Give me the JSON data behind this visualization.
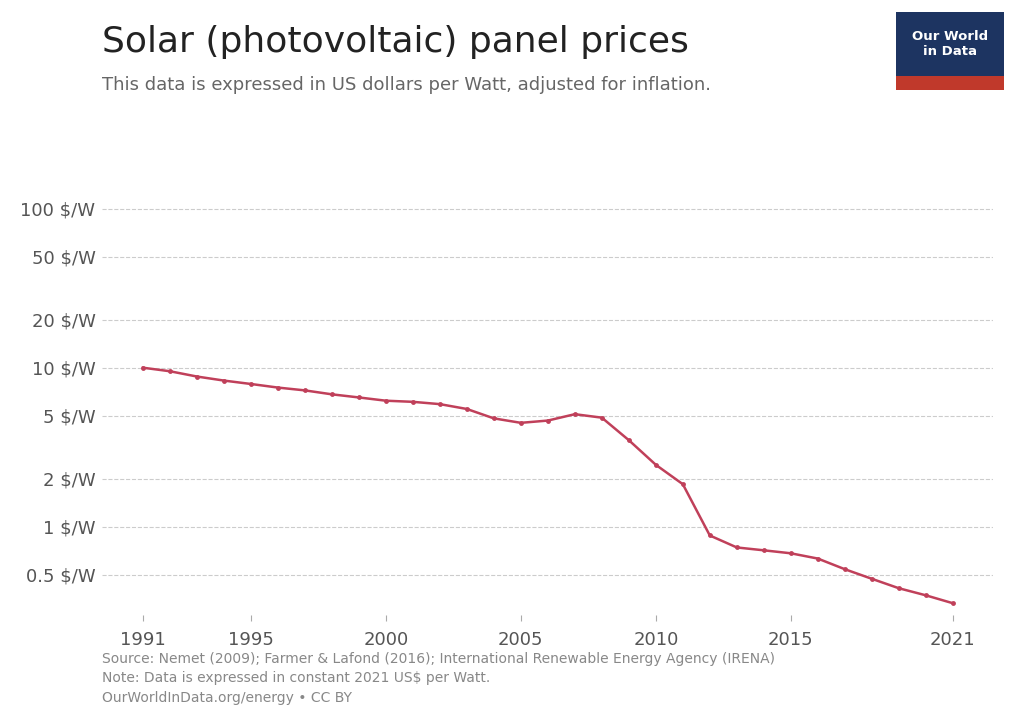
{
  "title": "Solar (photovoltaic) panel prices",
  "subtitle": "This data is expressed in US dollars per Watt, adjusted for inflation.",
  "source_text": "Source: Nemet (2009); Farmer & Lafond (2016); International Renewable Energy Agency (IRENA)\nNote: Data is expressed in constant 2021 US$ per Watt.\nOurWorldInData.org/energy • CC BY",
  "years": [
    1991,
    1992,
    1993,
    1994,
    1995,
    1996,
    1997,
    1998,
    1999,
    2000,
    2001,
    2002,
    2003,
    2004,
    2005,
    2006,
    2007,
    2008,
    2009,
    2010,
    2011,
    2012,
    2013,
    2014,
    2015,
    2016,
    2017,
    2018,
    2019,
    2020,
    2021
  ],
  "prices": [
    10.0,
    9.5,
    8.8,
    8.3,
    7.9,
    7.5,
    7.2,
    6.8,
    6.5,
    6.2,
    6.1,
    5.9,
    5.5,
    4.8,
    4.5,
    4.65,
    5.1,
    4.85,
    3.5,
    2.45,
    1.85,
    0.88,
    0.74,
    0.71,
    0.68,
    0.63,
    0.54,
    0.47,
    0.41,
    0.37,
    0.33
  ],
  "line_color": "#c0405a",
  "marker_color": "#c0405a",
  "bg_color": "#ffffff",
  "grid_color": "#cccccc",
  "yticks": [
    0.5,
    1,
    2,
    5,
    10,
    20,
    50,
    100
  ],
  "ytick_labels": [
    "0.5 $/W",
    "1 $/W",
    "2 $/W",
    "5 $/W",
    "10 $/W",
    "20 $/W",
    "50 $/W",
    "100 $/W"
  ],
  "xlim": [
    1989.5,
    2022.5
  ],
  "ylim_log": [
    0.28,
    150
  ],
  "xticks": [
    1991,
    1995,
    2000,
    2005,
    2010,
    2015,
    2021
  ],
  "title_fontsize": 26,
  "subtitle_fontsize": 13,
  "tick_fontsize": 13,
  "source_fontsize": 10,
  "logo_bg_top": "#1d3461",
  "logo_bg_bottom": "#c0392b",
  "logo_text_color": "#ffffff"
}
